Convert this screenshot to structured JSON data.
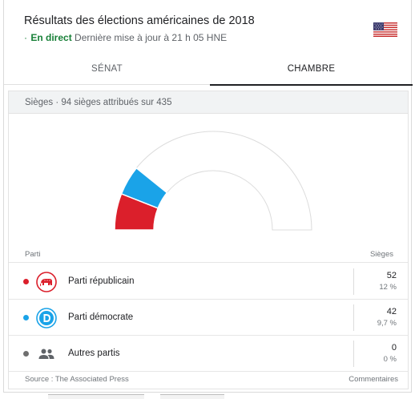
{
  "header": {
    "title": "Résultats des élections américaines de 2018",
    "live_dot": "·",
    "live_label": "En direct",
    "update_text": "Dernière mise à jour à 21 h 05 HNE",
    "flag_icon": "us-flag-icon"
  },
  "tabs": [
    {
      "label": "SÉNAT",
      "active": false
    },
    {
      "label": "CHAMBRE",
      "active": true
    }
  ],
  "panel": {
    "heading": "Sièges · 94 sièges attribués sur 435"
  },
  "table": {
    "col_party": "Parti",
    "col_seats": "Sièges",
    "rows": [
      {
        "name": "Parti républicain",
        "seats": "52",
        "pct": "12 %",
        "color": "#db1f2b",
        "icon": "republican-elephant-icon"
      },
      {
        "name": "Parti démocrate",
        "seats": "42",
        "pct": "9,7 %",
        "color": "#1aa3e8",
        "icon": "democrat-d-icon"
      },
      {
        "name": "Autres partis",
        "seats": "0",
        "pct": "0 %",
        "color": "#6f6f6f",
        "icon": "people-icon"
      }
    ]
  },
  "footer": {
    "source": "Source : The Associated Press",
    "comments": "Commentaires"
  },
  "chart_data": {
    "type": "pie",
    "total": 435,
    "series": [
      {
        "name": "Parti républicain",
        "value": 52,
        "color": "#db1f2b"
      },
      {
        "name": "Parti démocrate",
        "value": 42,
        "color": "#1aa3e8"
      },
      {
        "name": "Autres partis",
        "value": 0,
        "color": "#6f6f6f"
      }
    ]
  }
}
